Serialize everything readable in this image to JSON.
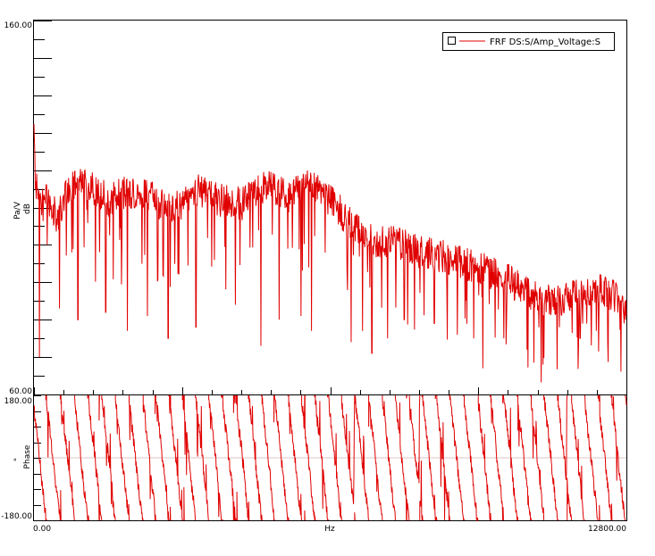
{
  "chart_data": [
    {
      "type": "line",
      "panel": "magnitude",
      "ylabel_unit": "Pa/V",
      "ylabel_scale": "dB",
      "ylim": [
        60,
        160
      ],
      "y_tick_labels": [
        "160.00",
        "60.00"
      ],
      "grid": false,
      "legend": {
        "placement": "top-right",
        "label": "FRF DS:S/Amp_Voltage:S"
      },
      "series": [
        {
          "name": "FRF DS:S/Amp_Voltage:S",
          "color": "#e00000",
          "x_hz": [
            0,
            32,
            100,
            200,
            300,
            500,
            700,
            1000,
            1300,
            1600,
            2000,
            2500,
            3000,
            3500,
            4000,
            4500,
            5000,
            5500,
            6000,
            6500,
            6800,
            7000,
            7400,
            7800,
            8300,
            8800,
            9300,
            9800,
            10300,
            10800,
            11300,
            11800,
            12300,
            12800
          ],
          "y_db": [
            132,
            116,
            114,
            110,
            113,
            107,
            114,
            117,
            115,
            112,
            114,
            113,
            109,
            115,
            112,
            111,
            116,
            113,
            116,
            111,
            106,
            104,
            101,
            101,
            98,
            97,
            95,
            93,
            90,
            86,
            85,
            87,
            88,
            84
          ],
          "notches_hz_db": [
            [
              120,
              70
            ],
            [
              550,
              83
            ],
            [
              950,
              80
            ],
            [
              1550,
              82
            ],
            [
              2020,
              77
            ],
            [
              2450,
              81
            ],
            [
              2900,
              75
            ],
            [
              3500,
              78
            ],
            [
              4350,
              84
            ],
            [
              4900,
              73
            ],
            [
              5300,
              80
            ],
            [
              5770,
              81
            ],
            [
              6000,
              77
            ],
            [
              6850,
              74
            ],
            [
              7100,
              77
            ],
            [
              7300,
              71
            ],
            [
              7640,
              75
            ],
            [
              8000,
              80
            ],
            [
              8650,
              79
            ],
            [
              9150,
              76
            ],
            [
              9500,
              75
            ],
            [
              9700,
              67
            ],
            [
              10150,
              75
            ],
            [
              10650,
              72
            ],
            [
              11000,
              68
            ],
            [
              11350,
              78
            ],
            [
              11800,
              75
            ],
            [
              12150,
              77
            ],
            [
              12400,
              74
            ],
            [
              12750,
              79
            ]
          ]
        }
      ]
    },
    {
      "type": "line",
      "panel": "phase",
      "ylabel_unit": "°",
      "ylabel_scale": "Phase",
      "ylim": [
        -180,
        180
      ],
      "y_tick_labels": [
        "180.00",
        "-180.00"
      ],
      "xlim": [
        0,
        12800
      ],
      "xlabel": "Hz",
      "x_tick_labels": [
        "0.00",
        "12800.00"
      ],
      "grid": false,
      "series": [
        {
          "name": "FRF DS:S/Amp_Voltage:S",
          "color": "#e00000",
          "wraps_per_range": 44,
          "phase_at_0hz": 150,
          "phase_at_12800hz": -30
        }
      ]
    }
  ]
}
